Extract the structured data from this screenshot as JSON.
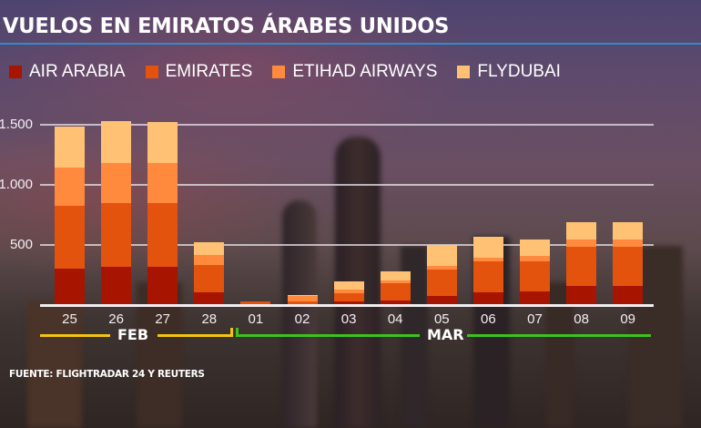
{
  "title": "VUELOS EN EMIRATOS ÁRABES UNIDOS",
  "source": "FUENTE: FLIGHTRADAR 24 Y REUTERS",
  "colors": {
    "air_arabia": "#A71500",
    "emirates": "#E3530E",
    "etihad": "#FF8A3D",
    "flydubai": "#FFC274",
    "title_underline": "#2F8CCC",
    "feb_bracket": "#F2C511",
    "mar_bracket": "#3CC21A"
  },
  "legend": [
    {
      "label": "AIR ARABIA",
      "color": "#A71500"
    },
    {
      "label": "EMIRATES",
      "color": "#E3530E"
    },
    {
      "label": "ETIHAD AIRWAYS",
      "color": "#FF8A3D"
    },
    {
      "label": "FLYDUBAI",
      "color": "#FFC274"
    }
  ],
  "months": [
    {
      "label": "FEB",
      "color": "#F2C511"
    },
    {
      "label": "MAR",
      "color": "#3CC21A"
    }
  ],
  "chart_data": {
    "type": "bar",
    "stacked": true,
    "title": "VUELOS EN EMIRATOS ÁRABES UNIDOS",
    "xlabel": "",
    "ylabel": "",
    "categories": [
      "25",
      "26",
      "27",
      "28",
      "01",
      "02",
      "03",
      "04",
      "05",
      "06",
      "07",
      "08",
      "09"
    ],
    "category_groups": [
      {
        "label": "FEB",
        "categories": [
          "25",
          "26",
          "27",
          "28"
        ]
      },
      {
        "label": "MAR",
        "categories": [
          "01",
          "02",
          "03",
          "04",
          "05",
          "06",
          "07",
          "08",
          "09"
        ]
      }
    ],
    "series": [
      {
        "name": "AIR ARABIA",
        "color": "#A71500",
        "values": [
          303,
          316,
          316,
          108,
          0,
          5,
          30,
          38,
          78,
          103,
          114,
          161,
          161
        ]
      },
      {
        "name": "EMIRATES",
        "color": "#E3530E",
        "values": [
          523,
          530,
          530,
          222,
          28,
          25,
          65,
          144,
          214,
          263,
          252,
          326,
          326
        ]
      },
      {
        "name": "ETIHAD AIRWAYS",
        "color": "#FF8A3D",
        "values": [
          316,
          334,
          334,
          89,
          0,
          45,
          36,
          25,
          36,
          30,
          40,
          61,
          61
        ]
      },
      {
        "name": "FLYDUBAI",
        "color": "#FFC274",
        "values": [
          343,
          348,
          340,
          106,
          0,
          10,
          66,
          76,
          169,
          172,
          136,
          141,
          141
        ]
      }
    ],
    "yticks": [
      {
        "value": 500,
        "label": "500"
      },
      {
        "value": 1000,
        "label": "1.000"
      },
      {
        "value": 1500,
        "label": "1.500"
      }
    ],
    "ylim": [
      0,
      1500
    ],
    "grid": true,
    "legend_position": "top",
    "source": "FUENTE: FLIGHTRADAR 24 Y REUTERS"
  }
}
